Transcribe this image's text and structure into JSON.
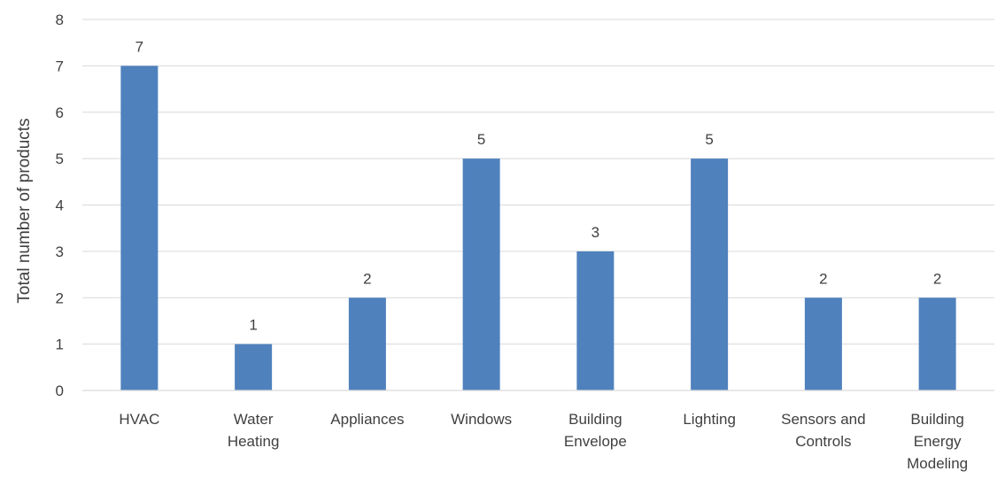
{
  "chart_data": {
    "type": "bar",
    "title": "",
    "xlabel": "",
    "ylabel": "Total  number of products",
    "categories": [
      [
        "HVAC"
      ],
      [
        "Water",
        "Heating"
      ],
      [
        "Appliances"
      ],
      [
        "Windows"
      ],
      [
        "Building",
        "Envelope"
      ],
      [
        "Lighting"
      ],
      [
        "Sensors and",
        "Controls"
      ],
      [
        "Building",
        "Energy",
        "Modeling"
      ]
    ],
    "values": [
      7,
      1,
      2,
      5,
      3,
      5,
      2,
      2
    ],
    "ylim": [
      0,
      8
    ],
    "yticks": [
      0,
      1,
      2,
      3,
      4,
      5,
      6,
      7,
      8
    ],
    "grid": true,
    "legend": "none",
    "bar_color": "#4f81bd",
    "grid_color": "#d9d9d9",
    "text_color": "#404040"
  }
}
